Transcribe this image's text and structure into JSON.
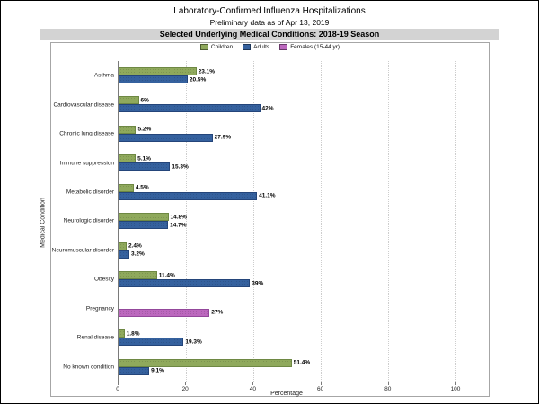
{
  "page": {
    "title": "Laboratory-Confirmed Influenza Hospitalizations",
    "subtitle": "Preliminary data as of Apr 13, 2019",
    "banner": "Selected Underlying Medical Conditions: 2018-19 Season"
  },
  "chart_data": {
    "type": "bar",
    "orientation": "horizontal",
    "title": "Laboratory-Confirmed Influenza Hospitalizations",
    "subtitle": "Preliminary data as of Apr 13, 2019",
    "section_header": "Selected Underlying Medical Conditions: 2018-19 Season",
    "xlabel": "Percentage",
    "ylabel": "Medical Condition",
    "xlim": [
      0,
      100
    ],
    "xticks": [
      0,
      20,
      40,
      60,
      80,
      100
    ],
    "grid": "dotted-vertical",
    "legend_position": "top-center",
    "categories": [
      "Asthma",
      "Cardiovascular disease",
      "Chronic lung disease",
      "Immune suppression",
      "Metabolic disorder",
      "Neurologic disorder",
      "Neuromuscular disorder",
      "Obesity",
      "Pregnancy",
      "Renal disease",
      "No known condition"
    ],
    "series": [
      {
        "name": "Children",
        "color": "#8FA95C",
        "border_color": "#6E8843",
        "values": [
          23.1,
          6,
          5.2,
          5.1,
          4.5,
          14.8,
          2.4,
          11.4,
          null,
          1.8,
          51.4
        ],
        "labels": [
          "23.1%",
          "6%",
          "5.2%",
          "5.1%",
          "4.5%",
          "14.8%",
          "2.4%",
          "11.4%",
          null,
          "1.8%",
          "51.4%"
        ]
      },
      {
        "name": "Adults",
        "color": "#35619E",
        "border_color": "#24457A",
        "values": [
          20.5,
          42,
          27.9,
          15.3,
          41.1,
          14.7,
          3.2,
          39,
          null,
          19.3,
          9.1
        ],
        "labels": [
          "20.5%",
          "42%",
          "27.9%",
          "15.3%",
          "41.1%",
          "14.7%",
          "3.2%",
          "39%",
          null,
          "19.3%",
          "9.1%"
        ]
      },
      {
        "name": "Females (15-44 yr)",
        "color": "#BC68BE",
        "border_color": "#93479B",
        "values": [
          null,
          null,
          null,
          null,
          null,
          null,
          null,
          null,
          27,
          null,
          null
        ],
        "labels": [
          null,
          null,
          null,
          null,
          null,
          null,
          null,
          null,
          "27%",
          null,
          null
        ]
      }
    ]
  },
  "colors": {
    "banner_bg": "#D3D3D3"
  }
}
